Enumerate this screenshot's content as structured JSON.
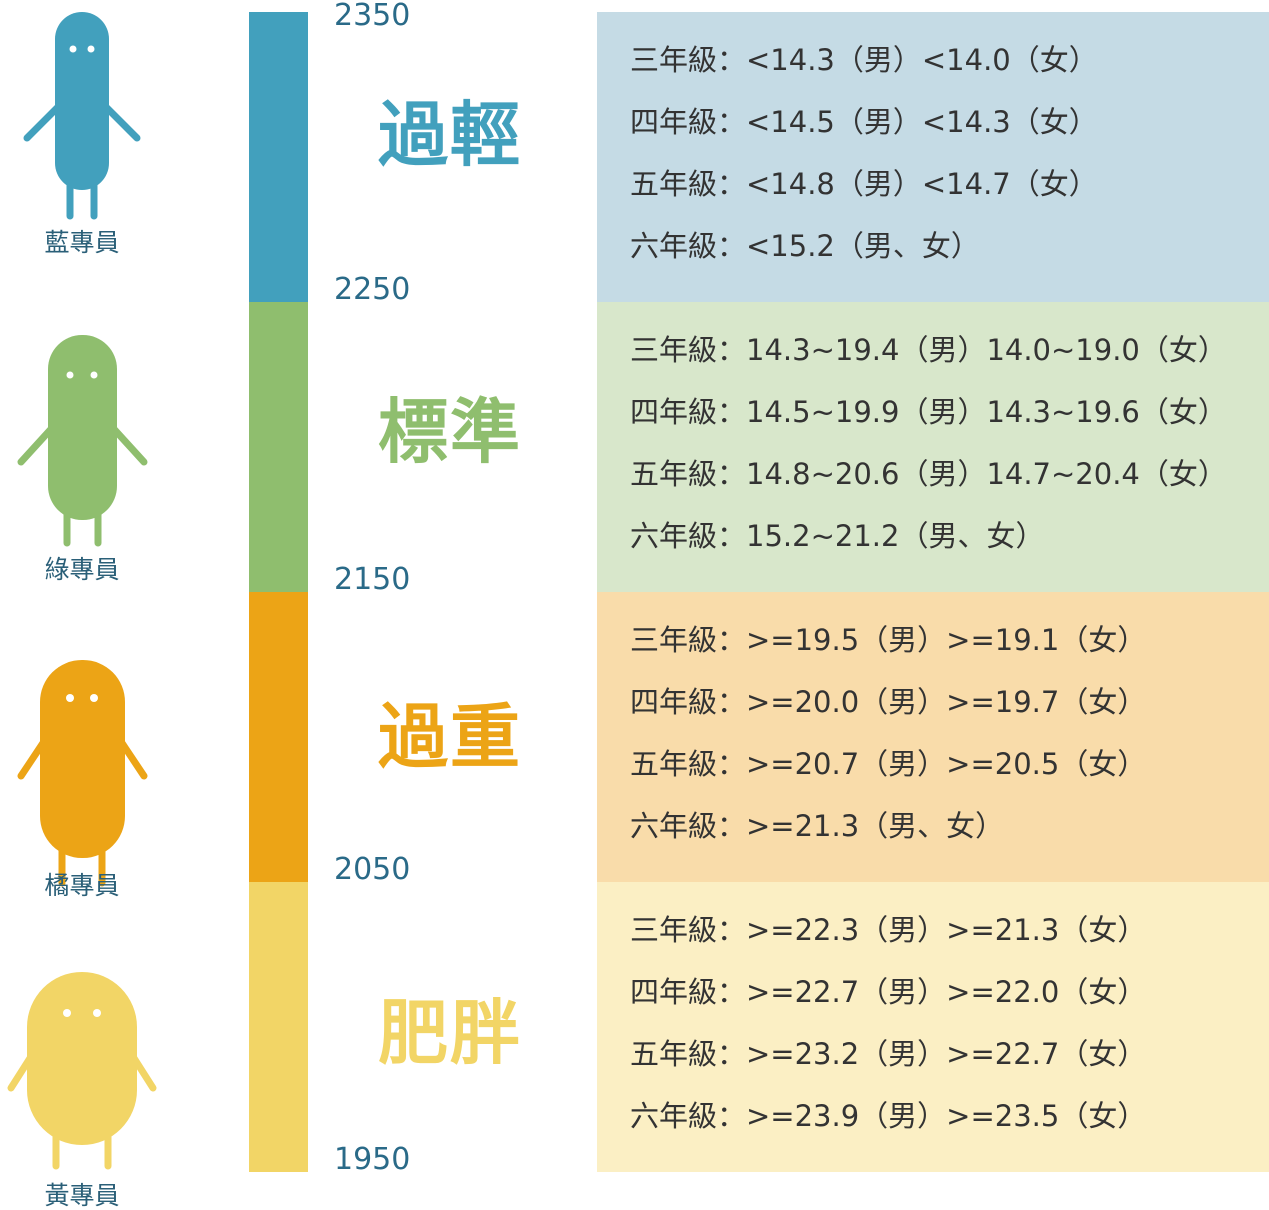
{
  "scale": [
    "2350",
    "2250",
    "2150",
    "2050",
    "1950"
  ],
  "levels": [
    {
      "character": "藍專員",
      "label": "過輕",
      "rows": [
        "三年級：<14.3（男）<14.0（女）",
        "四年級：<14.5（男）<14.3（女）",
        "五年級：<14.8（男）<14.7（女）",
        "六年級：<15.2（男、女）"
      ]
    },
    {
      "character": "綠專員",
      "label": "標準",
      "rows": [
        "三年級：14.3~19.4（男）14.0~19.0（女）",
        "四年級：14.5~19.9（男）14.3~19.6（女）",
        "五年級：14.8~20.6（男）14.7~20.4（女）",
        "六年級：15.2~21.2（男、女）"
      ]
    },
    {
      "character": "橘專員",
      "label": "過重",
      "rows": [
        "三年級：>=19.5（男）>=19.1（女）",
        "四年級：>=20.0（男）>=19.7（女）",
        "五年級：>=20.7（男）>=20.5（女）",
        "六年級：>=21.3（男、女）"
      ]
    },
    {
      "character": "黃專員",
      "label": "肥胖",
      "rows": [
        "三年級：>=22.3（男）>=21.3（女）",
        "四年級：>=22.7（男）>=22.0（女）",
        "五年級：>=23.2（男）>=22.7（女）",
        "六年級：>=23.9（男）>=23.5（女）"
      ]
    }
  ]
}
